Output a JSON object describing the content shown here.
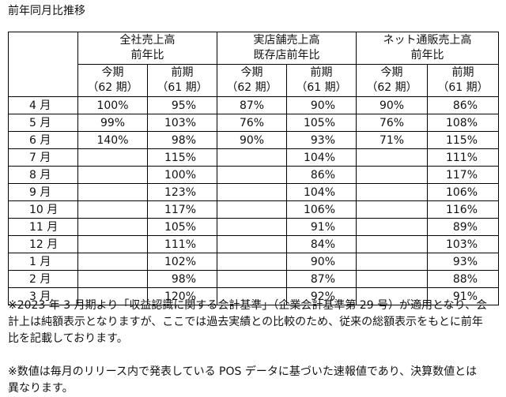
{
  "title": "前年同月比推移",
  "groups": [
    {
      "line1": "全社売上高",
      "line2": "前年比"
    },
    {
      "line1": "実店舗売上高",
      "line2": "既存店前年比"
    },
    {
      "line1": "ネット通販売上高",
      "line2": "前年比"
    }
  ],
  "sub": {
    "current": {
      "label": "今期",
      "period": "（62 期）"
    },
    "previous": {
      "label": "前期",
      "period": "（61 期）"
    }
  },
  "rows": [
    {
      "month": "4 月",
      "v": [
        "100%",
        "95%",
        "87%",
        "90%",
        "90%",
        "86%"
      ]
    },
    {
      "month": "5 月",
      "v": [
        "99%",
        "103%",
        "76%",
        "105%",
        "76%",
        "108%"
      ]
    },
    {
      "month": "6 月",
      "v": [
        "140%",
        "98%",
        "90%",
        "93%",
        "71%",
        "115%"
      ]
    },
    {
      "month": "7 月",
      "v": [
        "",
        "115%",
        "",
        "104%",
        "",
        "111%"
      ]
    },
    {
      "month": "8 月",
      "v": [
        "",
        "100%",
        "",
        "86%",
        "",
        "117%"
      ]
    },
    {
      "month": "9 月",
      "v": [
        "",
        "123%",
        "",
        "104%",
        "",
        "106%"
      ]
    },
    {
      "month": "10 月",
      "v": [
        "",
        "117%",
        "",
        "106%",
        "",
        "116%"
      ]
    },
    {
      "month": "11 月",
      "v": [
        "",
        "105%",
        "",
        "91%",
        "",
        "89%"
      ]
    },
    {
      "month": "12 月",
      "v": [
        "",
        "111%",
        "",
        "84%",
        "",
        "103%"
      ]
    },
    {
      "month": "1 月",
      "v": [
        "",
        "102%",
        "",
        "90%",
        "",
        "93%"
      ]
    },
    {
      "month": "2 月",
      "v": [
        "",
        "98%",
        "",
        "87%",
        "",
        "88%"
      ]
    },
    {
      "month": "3 月",
      "v": [
        "",
        "120%",
        "",
        "92%",
        "",
        "91%"
      ]
    }
  ],
  "notes": {
    "note1_line1": "※2023 年 3 月期より「収益認識に関する会計基準」（企業会計基準第 29 号）が適用となり、会",
    "note1_line2": "計上は純額表示となりますが、ここでは過去実績との比較のため、従来の総額表示をもとに前年",
    "note1_line3": "比を記載しております。",
    "note2_line1": "※数値は毎月のリリース内で発表している POS データに基づいた速報値であり、決算数値とは",
    "note2_line2": "異なります。"
  }
}
